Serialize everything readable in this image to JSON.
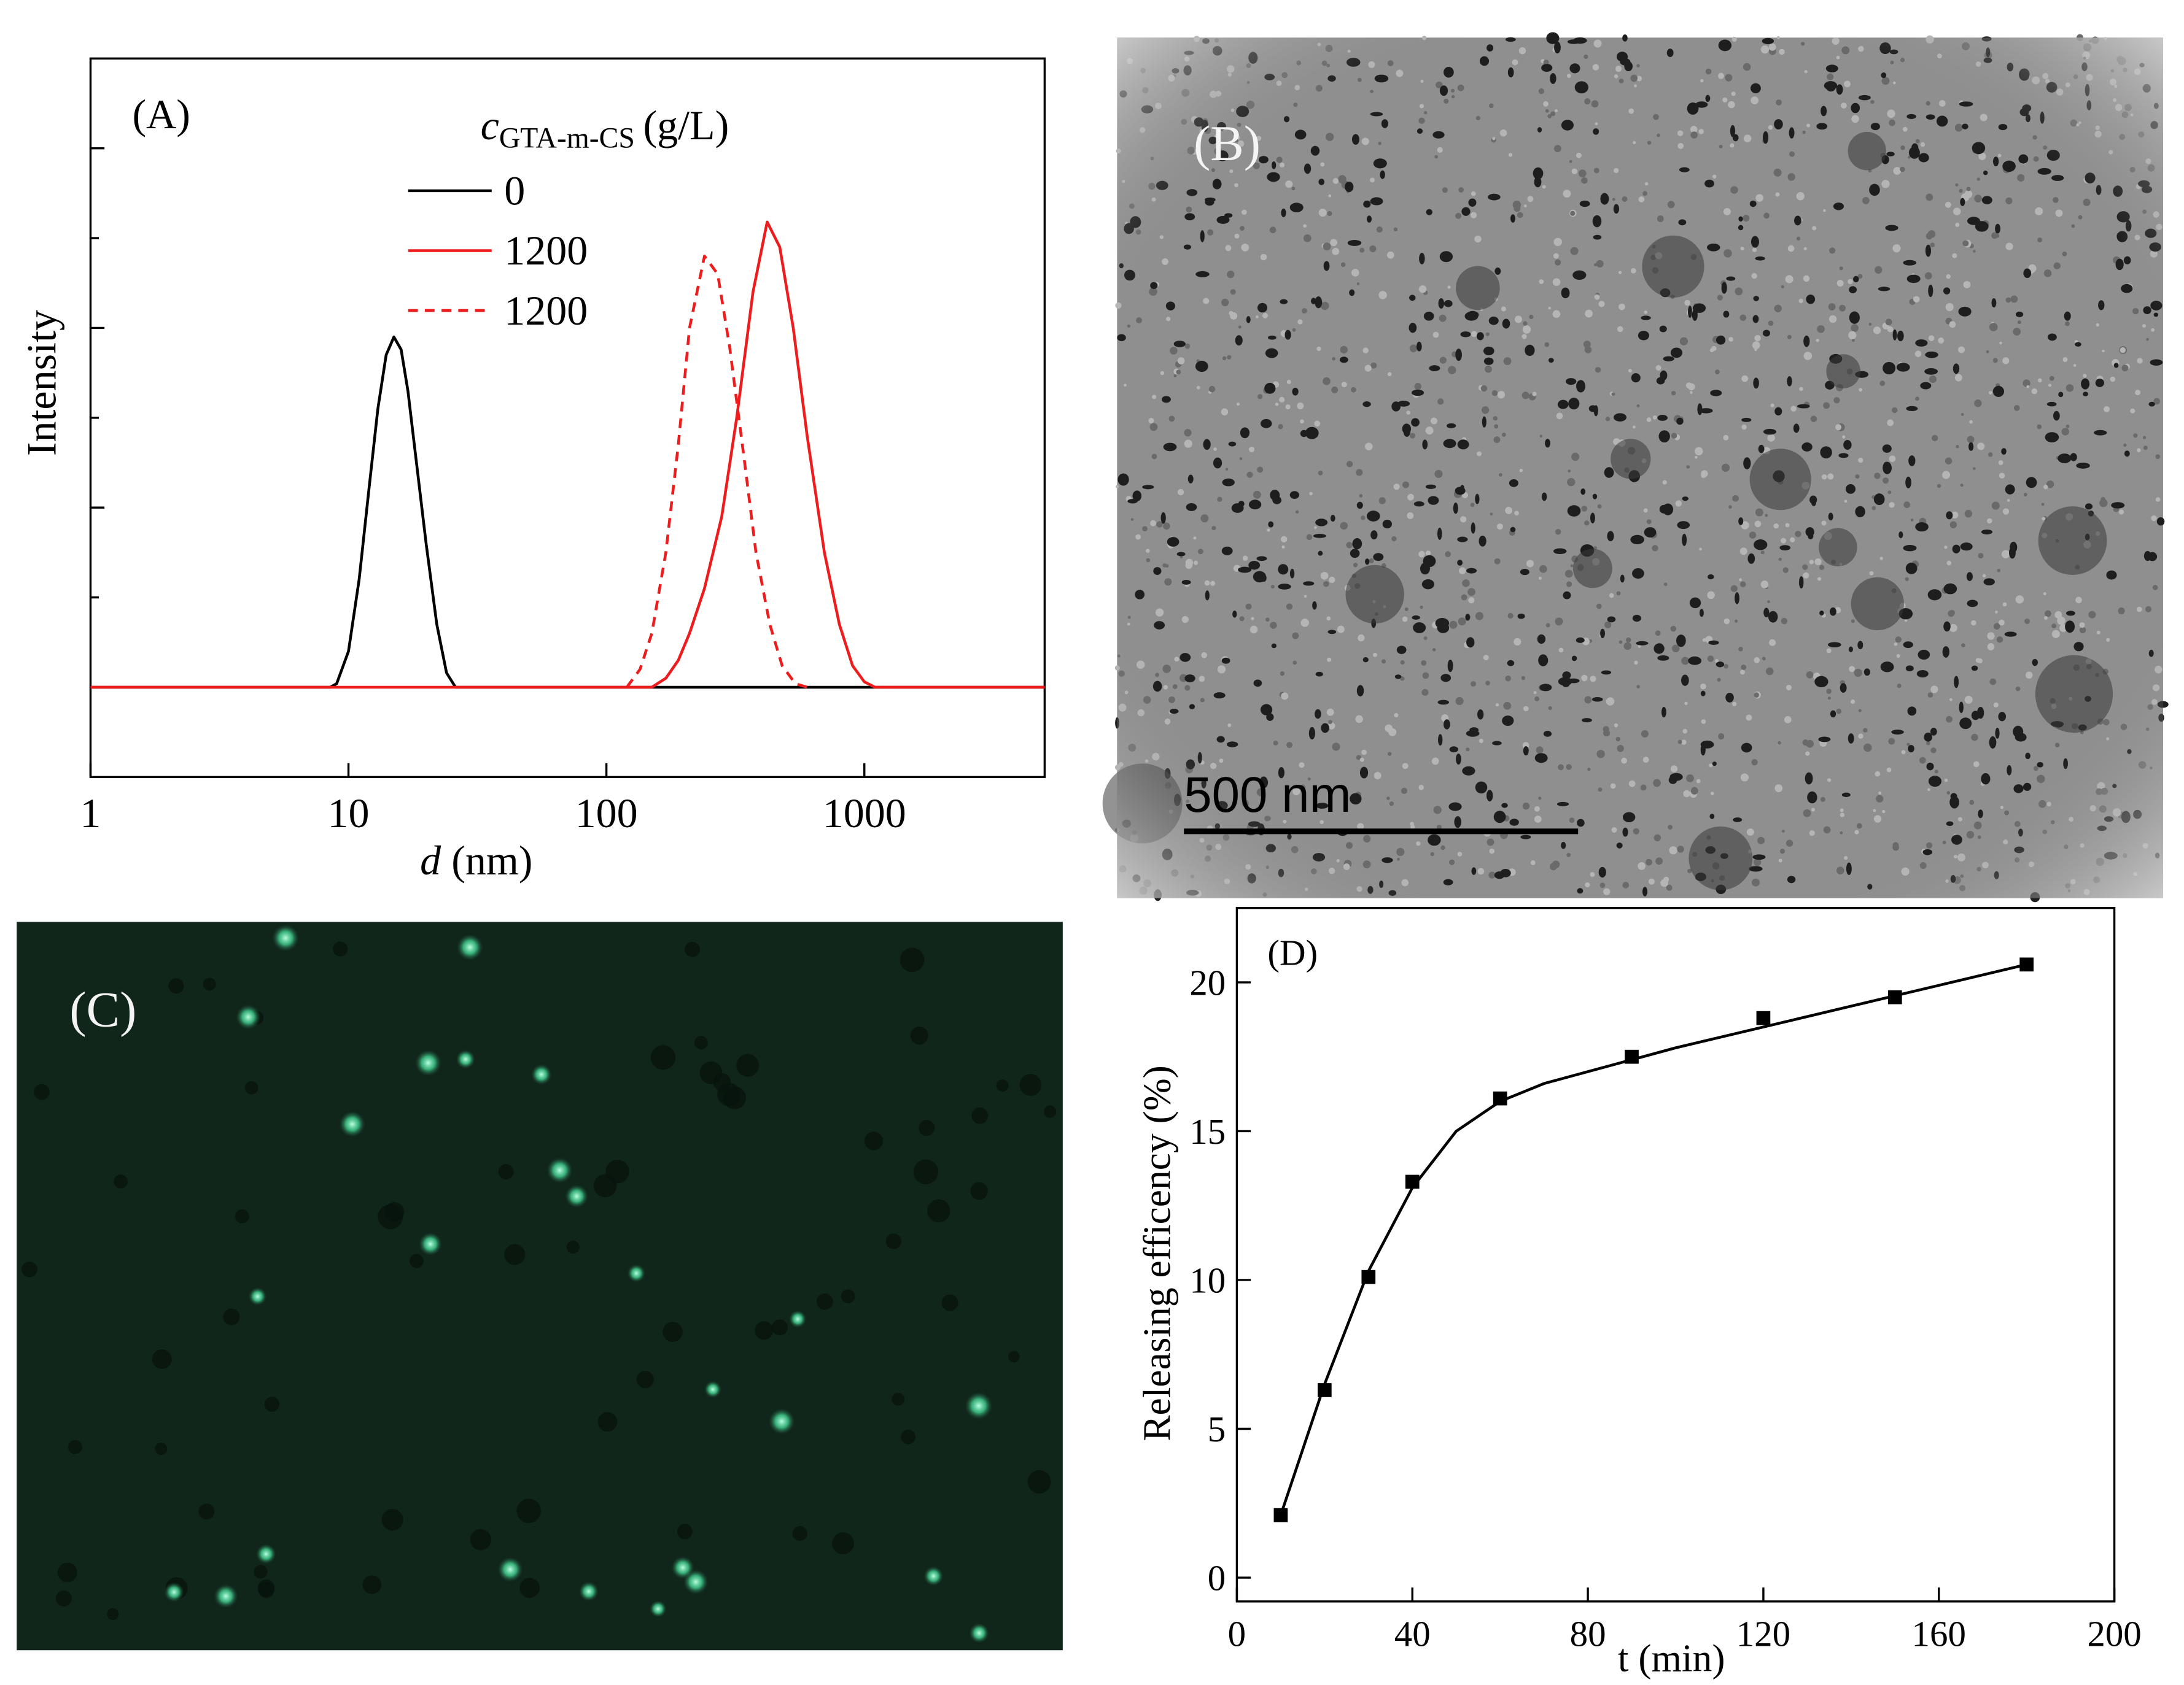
{
  "chart_data": [
    {
      "type": "line",
      "panel_label": "(A)",
      "ylabel": "Intensity",
      "xlabel": "d",
      "xlabel_unit": "(nm)",
      "legend_title": "c",
      "legend_title_sub": "GTA-m-CS",
      "legend_title_unit": "(g/L)",
      "xscale": "log",
      "xlim": [
        1,
        5000
      ],
      "xticks": [
        1,
        10,
        100,
        1000
      ],
      "ylim": [
        -0.5,
        3.5
      ],
      "yticks": [
        0,
        0.5,
        1,
        1.5,
        2,
        2.5,
        3
      ],
      "ytick_labels": false,
      "series": [
        {
          "name": "0",
          "color": "#000000",
          "dashed": false,
          "x": [
            1,
            8.5,
            9,
            10,
            11,
            12,
            13,
            14,
            15,
            16,
            17,
            18,
            20,
            22,
            24,
            26,
            5000
          ],
          "values": [
            0,
            0,
            0.02,
            0.2,
            0.6,
            1.1,
            1.55,
            1.85,
            1.95,
            1.88,
            1.65,
            1.35,
            0.8,
            0.35,
            0.08,
            0,
            0
          ]
        },
        {
          "name": "1200",
          "color": "#ee1c1c",
          "dashed": false,
          "x": [
            1,
            150,
            170,
            190,
            210,
            240,
            280,
            320,
            370,
            420,
            470,
            530,
            600,
            700,
            800,
            900,
            1000,
            1100,
            5000
          ],
          "values": [
            0,
            0,
            0.05,
            0.15,
            0.3,
            0.55,
            0.95,
            1.5,
            2.2,
            2.59,
            2.45,
            2.0,
            1.4,
            0.75,
            0.35,
            0.12,
            0.03,
            0,
            0
          ]
        },
        {
          "name": "1200",
          "color": "#ee1c1c",
          "dashed": true,
          "x": [
            120,
            135,
            150,
            170,
            190,
            210,
            240,
            270,
            300,
            340,
            380,
            430,
            480,
            540,
            600
          ],
          "values": [
            0,
            0.1,
            0.3,
            0.75,
            1.35,
            2.0,
            2.4,
            2.3,
            1.9,
            1.3,
            0.75,
            0.35,
            0.12,
            0.02,
            0
          ]
        }
      ]
    },
    {
      "type": "scatter",
      "panel_label": "(D)",
      "ylabel": "Releasing efficency (%)",
      "xlabel": "t (min)",
      "xlim": [
        0,
        200
      ],
      "xticks": [
        0,
        40,
        80,
        120,
        160,
        200
      ],
      "ylim": [
        -0.8,
        22.5
      ],
      "yticks": [
        0,
        5,
        10,
        15,
        20
      ],
      "series": [
        {
          "color": "#000000",
          "marker": "square",
          "x": [
            10,
            20,
            30,
            40,
            60,
            90,
            120,
            150,
            180
          ],
          "values": [
            2.1,
            6.3,
            10.1,
            13.3,
            16.1,
            17.5,
            18.8,
            19.5,
            20.6
          ]
        },
        {
          "color": "#000000",
          "marker": "none",
          "x": [
            10,
            20,
            30,
            40,
            50,
            60,
            70,
            80,
            100,
            120,
            140,
            160,
            180
          ],
          "values": [
            2.1,
            6.5,
            10.3,
            13.1,
            15.0,
            16.0,
            16.6,
            17.0,
            17.8,
            18.5,
            19.2,
            19.9,
            20.6
          ]
        }
      ]
    }
  ],
  "panels": {
    "B": {
      "label": "(B)",
      "scale_bar": "500 nm"
    },
    "C": {
      "label": "(C)"
    }
  }
}
